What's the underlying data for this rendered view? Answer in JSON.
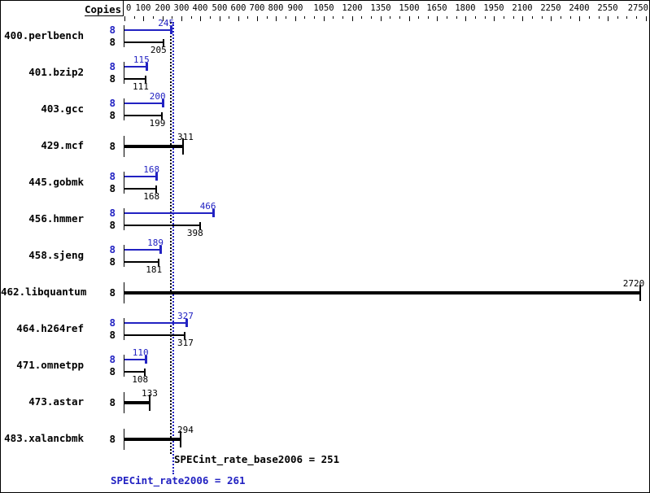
{
  "header": {
    "copies_label": "Copies"
  },
  "chart_data": {
    "type": "bar",
    "orientation": "horizontal",
    "x_axis": {
      "min": 0,
      "max": 2750,
      "minor_tick_step": 50,
      "labeled_ticks": [
        0,
        100,
        200,
        300,
        400,
        500,
        600,
        700,
        800,
        900,
        1050,
        1200,
        1350,
        1500,
        1650,
        1800,
        1950,
        2100,
        2250,
        2400,
        2550,
        2750
      ]
    },
    "benchmarks": [
      {
        "name": "400.perlbench",
        "bars": [
          {
            "kind": "peak",
            "copies": "8",
            "value": 245
          },
          {
            "kind": "base",
            "copies": "8",
            "value": 205
          }
        ]
      },
      {
        "name": "401.bzip2",
        "bars": [
          {
            "kind": "peak",
            "copies": "8",
            "value": 115
          },
          {
            "kind": "base",
            "copies": "8",
            "value": 111
          }
        ]
      },
      {
        "name": "403.gcc",
        "bars": [
          {
            "kind": "peak",
            "copies": "8",
            "value": 200
          },
          {
            "kind": "base",
            "copies": "8",
            "value": 199
          }
        ]
      },
      {
        "name": "429.mcf",
        "bars": [
          {
            "kind": "single",
            "copies": "8",
            "value": 311
          }
        ]
      },
      {
        "name": "445.gobmk",
        "bars": [
          {
            "kind": "peak",
            "copies": "8",
            "value": 168
          },
          {
            "kind": "base",
            "copies": "8",
            "value": 168
          }
        ]
      },
      {
        "name": "456.hmmer",
        "bars": [
          {
            "kind": "peak",
            "copies": "8",
            "value": 466
          },
          {
            "kind": "base",
            "copies": "8",
            "value": 398
          }
        ]
      },
      {
        "name": "458.sjeng",
        "bars": [
          {
            "kind": "peak",
            "copies": "8",
            "value": 189
          },
          {
            "kind": "base",
            "copies": "8",
            "value": 181
          }
        ]
      },
      {
        "name": "462.libquantum",
        "bars": [
          {
            "kind": "single",
            "copies": "8",
            "value": 2720
          }
        ]
      },
      {
        "name": "464.h264ref",
        "bars": [
          {
            "kind": "peak",
            "copies": "8",
            "value": 327
          },
          {
            "kind": "base",
            "copies": "8",
            "value": 317
          }
        ]
      },
      {
        "name": "471.omnetpp",
        "bars": [
          {
            "kind": "peak",
            "copies": "8",
            "value": 110
          },
          {
            "kind": "base",
            "copies": "8",
            "value": 108
          }
        ]
      },
      {
        "name": "473.astar",
        "bars": [
          {
            "kind": "single",
            "copies": "8",
            "value": 133
          }
        ]
      },
      {
        "name": "483.xalancbmk",
        "bars": [
          {
            "kind": "single",
            "copies": "8",
            "value": 294
          }
        ]
      }
    ],
    "reference_lines": [
      {
        "name": "SPECint_rate_base2006",
        "value": 251,
        "kind": "base"
      },
      {
        "name": "SPECint_rate2006",
        "value": 261,
        "kind": "peak"
      }
    ],
    "summary": {
      "base_text": "SPECint_rate_base2006 = 251",
      "peak_text": "SPECint_rate2006 = 261"
    }
  },
  "colors": {
    "peak_blue": "#2222c2",
    "base_black": "#000000",
    "background": "#ffffff"
  }
}
